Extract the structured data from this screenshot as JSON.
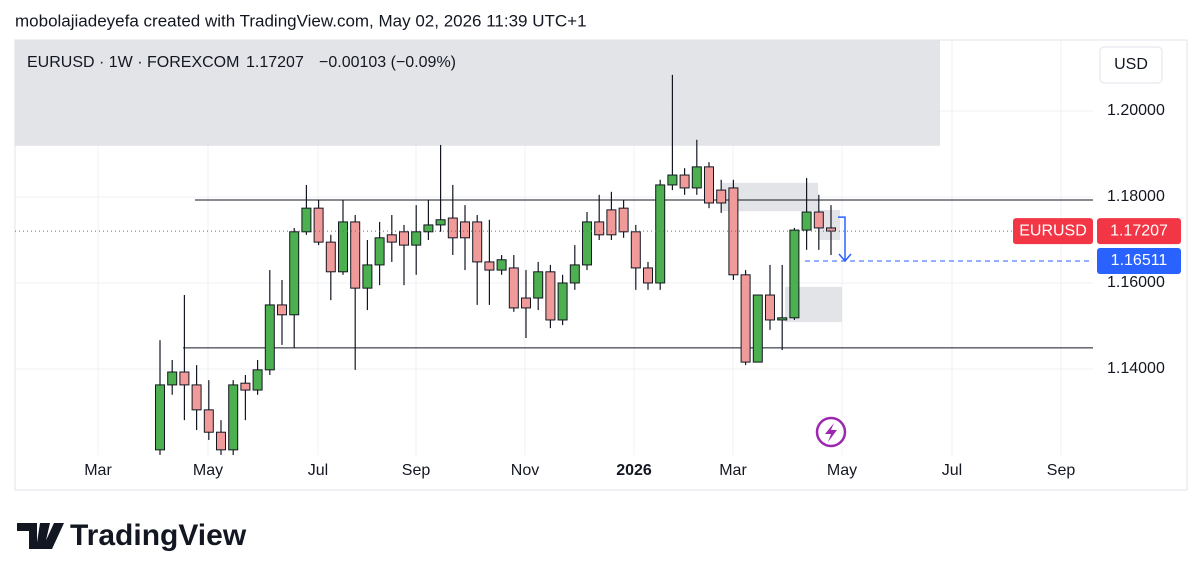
{
  "header": "mobolajiadeyefa created with TradingView.com, May 02, 2026 11:39 UTC+1",
  "brand": "TradingView",
  "chart_data": {
    "type": "candlestick",
    "symbol": "EURUSD · 1W · FOREXCOM",
    "last": "1.17207",
    "change": "−0.00103 (−0.09%)",
    "currency": "USD",
    "price_tag": "EURUSD",
    "alert_level": 1.16511,
    "levels": [
      1.1793,
      1.1449
    ],
    "zones": [
      [
        1.1919,
        1.2165
      ],
      [
        1.1767,
        1.1833
      ],
      [
        1.1509,
        1.1591
      ],
      [
        1.17,
        1.177
      ]
    ],
    "ylim": [
      1.12,
      1.2165
    ],
    "yticks": [
      {
        "value": 1.14,
        "label": "1.14000"
      },
      {
        "value": 1.16,
        "label": "1.16000"
      },
      {
        "value": 1.18,
        "label": "1.18000"
      },
      {
        "value": 1.2,
        "label": "1.20000"
      }
    ],
    "x_labels": [
      "Mar",
      "May",
      "Jul",
      "Sep",
      "Nov",
      "2026",
      "Mar",
      "May",
      "Jul",
      "Sep"
    ],
    "up_color": "#4caf50",
    "down_color": "#f09a9a",
    "open": [
      1.1212,
      1.1363,
      1.1393,
      1.1363,
      1.1305,
      1.1253,
      1.1212,
      1.1367,
      1.1351,
      1.1398,
      1.1549,
      1.1526,
      1.1719,
      1.1774,
      1.1695,
      1.1626,
      1.1742,
      1.1588,
      1.1642,
      1.1712,
      1.1719,
      1.1688,
      1.1719,
      1.1735,
      1.1751,
      1.1742,
      1.1742,
      1.1649,
      1.163,
      1.1635,
      1.1565,
      1.1565,
      1.1626,
      1.1514,
      1.16,
      1.1642,
      1.1742,
      1.177,
      1.1774,
      1.1719,
      1.1635,
      1.16,
      1.1828,
      1.1851,
      1.1821,
      1.187,
      1.1816,
      1.1821,
      1.1619,
      1.1416,
      1.1572,
      1.1514,
      1.1519,
      1.1723,
      1.1765,
      1.1728
    ],
    "high": [
      1.1467,
      1.1421,
      1.1572,
      1.1409,
      1.1374,
      1.1281,
      1.1374,
      1.1386,
      1.1421,
      1.163,
      1.1607,
      1.1728,
      1.1828,
      1.1793,
      1.1712,
      1.1793,
      1.1758,
      1.17,
      1.1742,
      1.1758,
      1.1735,
      1.1781,
      1.1793,
      1.1921,
      1.1828,
      1.1781,
      1.1758,
      1.1747,
      1.1665,
      1.1665,
      1.163,
      1.1649,
      1.1642,
      1.1619,
      1.1688,
      1.1765,
      1.1805,
      1.1812,
      1.1793,
      1.1735,
      1.1649,
      1.184,
      1.2084,
      1.1867,
      1.1933,
      1.1881,
      1.184,
      1.184,
      1.163,
      1.1572,
      1.1642,
      1.1642,
      1.1728,
      1.1844,
      1.1805,
      1.1781
    ],
    "low": [
      1.12,
      1.134,
      1.1281,
      1.1258,
      1.1235,
      1.12,
      1.12,
      1.1281,
      1.134,
      1.1386,
      1.1456,
      1.1449,
      1.1712,
      1.1688,
      1.156,
      1.1619,
      1.1398,
      1.1537,
      1.1595,
      1.1649,
      1.1595,
      1.1619,
      1.17,
      1.1719,
      1.1665,
      1.163,
      1.1549,
      1.1549,
      1.1619,
      1.1533,
      1.1472,
      1.1537,
      1.1495,
      1.1502,
      1.1584,
      1.163,
      1.17,
      1.17,
      1.1705,
      1.1584,
      1.1584,
      1.1584,
      1.1816,
      1.1805,
      1.1805,
      1.1774,
      1.1763,
      1.1607,
      1.1409,
      1.1416,
      1.1491,
      1.1444,
      1.1514,
      1.1677,
      1.1677,
      1.1665
    ],
    "close": [
      1.1363,
      1.1393,
      1.1363,
      1.1305,
      1.1253,
      1.1212,
      1.1363,
      1.1351,
      1.1398,
      1.1549,
      1.1526,
      1.1719,
      1.1774,
      1.1695,
      1.1626,
      1.1742,
      1.1588,
      1.1642,
      1.1705,
      1.1695,
      1.1688,
      1.1719,
      1.1735,
      1.1747,
      1.1705,
      1.1705,
      1.1649,
      1.163,
      1.1654,
      1.1542,
      1.1542,
      1.1626,
      1.1514,
      1.16,
      1.1642,
      1.1742,
      1.1712,
      1.1712,
      1.1719,
      1.1635,
      1.16,
      1.1828,
      1.1851,
      1.1821,
      1.187,
      1.1786,
      1.1786,
      1.1619,
      1.1416,
      1.1572,
      1.1514,
      1.1519,
      1.1723,
      1.1765,
      1.1728,
      1.17207
    ]
  }
}
